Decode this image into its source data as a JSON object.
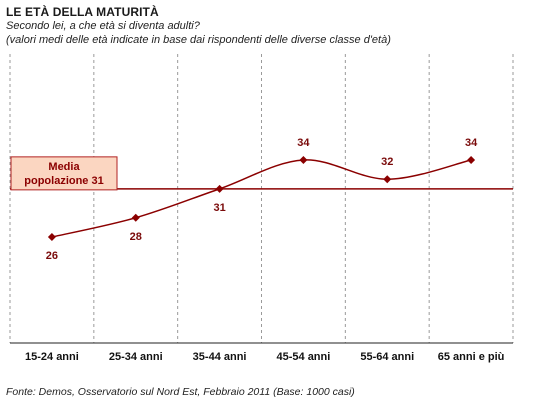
{
  "header": {
    "title": "LE ETÀ DELLA MATURITÀ",
    "subtitle_line1": "Secondo lei, a che età si diventa adulti?",
    "subtitle_line2": "(valori medi delle età indicate in base dai rispondenti delle diverse classe d'età)"
  },
  "footer": {
    "source": "Fonte: Demos, Osservatorio sul Nord Est, Febbraio 2011 (Base: 1000 casi)"
  },
  "chart_data": {
    "type": "line",
    "categories": [
      "15-24 anni",
      "25-34 anni",
      "35-44 anni",
      "45-54 anni",
      "55-64 anni",
      "65 anni e più"
    ],
    "series": [
      {
        "values": [
          26,
          28,
          31,
          34,
          32,
          34
        ],
        "color": "#8b0000"
      }
    ],
    "reference_line": {
      "label_line1": "Media",
      "label_line2": "popolazione 31",
      "value": 31,
      "color": "#8b0000"
    },
    "ylim": [
      15,
      45
    ],
    "grid": "vertical-dashed",
    "smooth": true
  }
}
